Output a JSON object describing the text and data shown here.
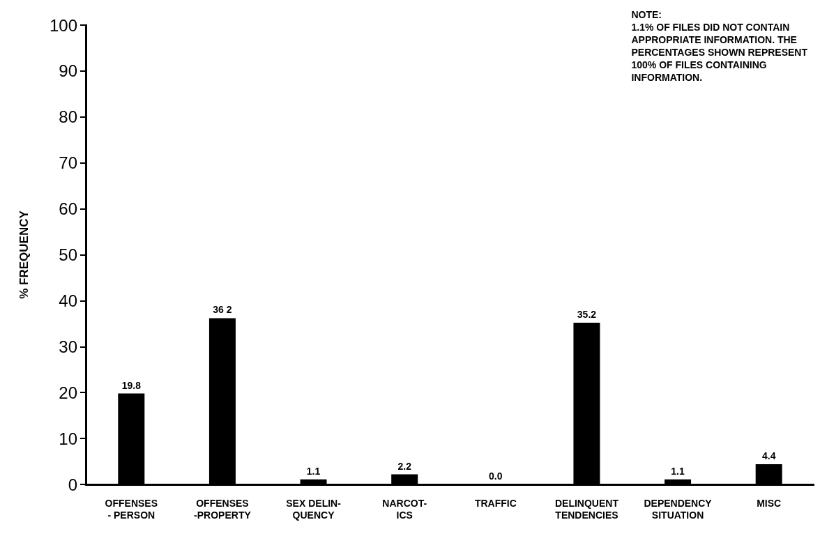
{
  "chart_data": {
    "type": "bar",
    "ylabel": "% FREQUENCY",
    "categories": [
      "OFFENSES\n- PERSON",
      "OFFENSES\n-PROPERTY",
      "SEX DELIN-\nQUENCY",
      "NARCOT-\nICS",
      "TRAFFIC",
      "DELINQUENT\nTENDENCIES",
      "DEPENDENCY\nSITUATION",
      "MISC"
    ],
    "values": [
      19.8,
      36.2,
      1.1,
      2.2,
      0.0,
      35.2,
      1.1,
      4.4
    ],
    "value_labels": [
      "19.8",
      "36 2",
      "1.1",
      "2.2",
      "0.0",
      "35.2",
      "1.1",
      "4.4"
    ],
    "color": "#000000",
    "ylim": [
      0,
      100
    ],
    "yticks": [
      0,
      10,
      20,
      30,
      40,
      50,
      60,
      70,
      80,
      90,
      100
    ],
    "grid": false,
    "annotations": [
      "NOTE:\n1.1% OF FILES DID NOT CONTAIN\nAPPROPRIATE INFORMATION. THE\nPERCENTAGES SHOWN REPRESENT\n100% OF FILES CONTAINING\nINFORMATION."
    ]
  }
}
